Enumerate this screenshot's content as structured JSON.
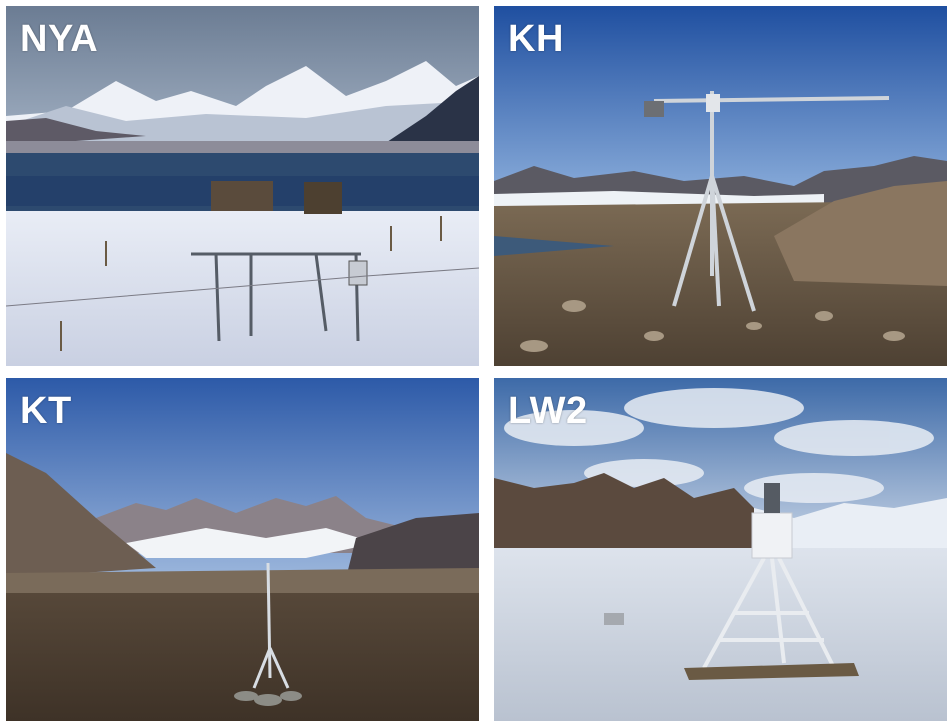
{
  "panels": [
    {
      "label": "NYA"
    },
    {
      "label": "KH"
    },
    {
      "label": "KT"
    },
    {
      "label": "LW2"
    }
  ]
}
